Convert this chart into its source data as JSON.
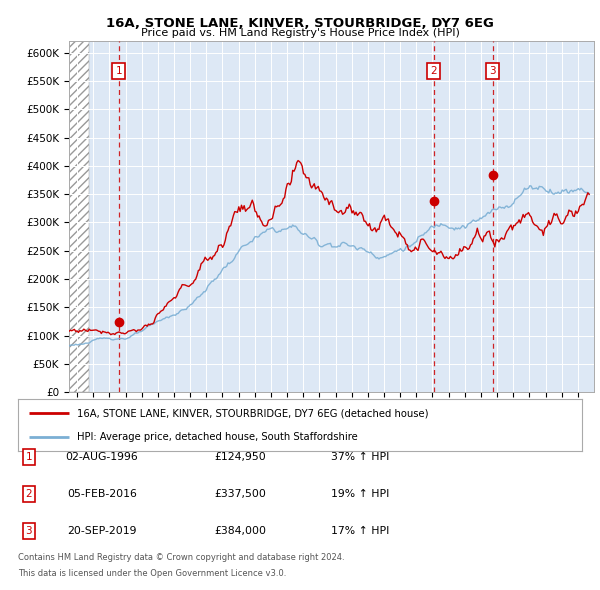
{
  "title1": "16A, STONE LANE, KINVER, STOURBRIDGE, DY7 6EG",
  "title2": "Price paid vs. HM Land Registry's House Price Index (HPI)",
  "ylabel_ticks": [
    "£0",
    "£50K",
    "£100K",
    "£150K",
    "£200K",
    "£250K",
    "£300K",
    "£350K",
    "£400K",
    "£450K",
    "£500K",
    "£550K",
    "£600K"
  ],
  "ytick_values": [
    0,
    50000,
    100000,
    150000,
    200000,
    250000,
    300000,
    350000,
    400000,
    450000,
    500000,
    550000,
    600000
  ],
  "xlim_start": 1993.5,
  "xlim_end": 2026.0,
  "ylim_min": 0,
  "ylim_max": 620000,
  "sale_dates": [
    1996.58,
    2016.09,
    2019.72
  ],
  "sale_prices": [
    124950,
    337500,
    384000
  ],
  "sale_labels": [
    "1",
    "2",
    "3"
  ],
  "legend_line1": "16A, STONE LANE, KINVER, STOURBRIDGE, DY7 6EG (detached house)",
  "legend_line2": "HPI: Average price, detached house, South Staffordshire",
  "table_data": [
    [
      "1",
      "02-AUG-1996",
      "£124,950",
      "37% ↑ HPI"
    ],
    [
      "2",
      "05-FEB-2016",
      "£337,500",
      "19% ↑ HPI"
    ],
    [
      "3",
      "20-SEP-2019",
      "£384,000",
      "17% ↑ HPI"
    ]
  ],
  "footnote1": "Contains HM Land Registry data © Crown copyright and database right 2024.",
  "footnote2": "This data is licensed under the Open Government Licence v3.0.",
  "hatch_region_end": 1994.75,
  "red_color": "#cc0000",
  "blue_color": "#7bafd4",
  "bg_color": "#dde8f5",
  "plot_bg": "#dde8f5"
}
